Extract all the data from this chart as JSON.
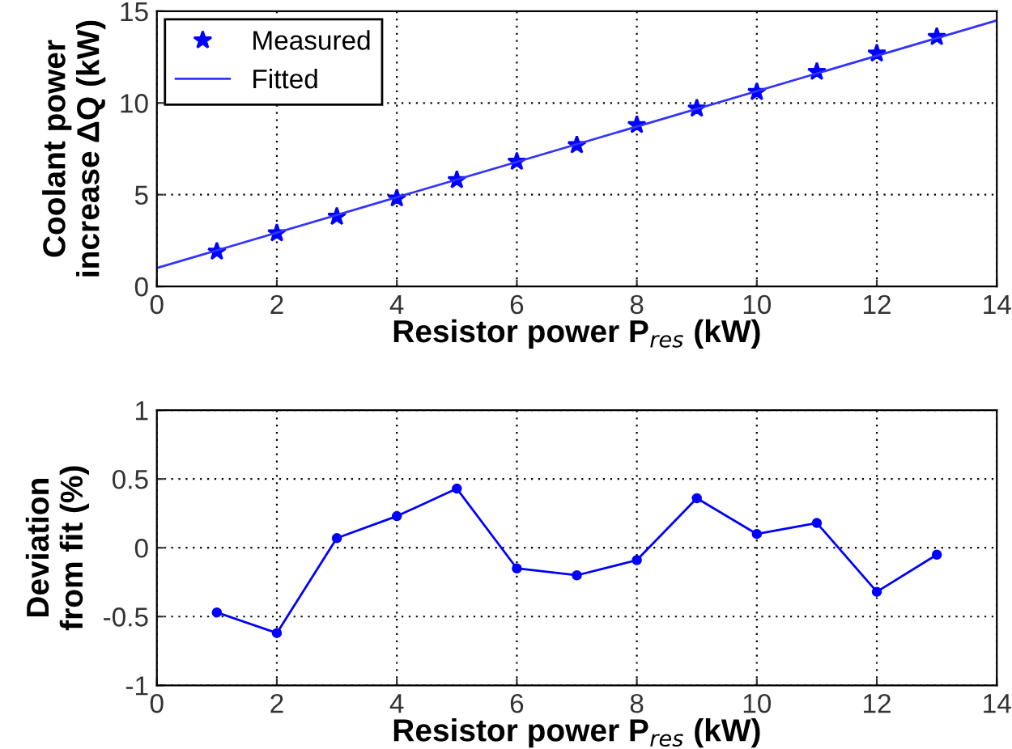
{
  "chart_data": [
    {
      "type": "line",
      "xlabel": "Resistor power P$_{res}$ (kW)",
      "ylabel": "Coolant power\nincrease ΔQ (kW)",
      "xlim": [
        0,
        14
      ],
      "ylim": [
        0,
        15
      ],
      "xticks": [
        0,
        2,
        4,
        6,
        8,
        10,
        12,
        14
      ],
      "yticks": [
        0,
        5,
        10,
        15
      ],
      "grid": true,
      "legend": "top left",
      "series": [
        {
          "name": "Measured",
          "type": "scatter",
          "marker": "star",
          "color": "#0000ff",
          "x": [
            1,
            2,
            3,
            4,
            5,
            6,
            7,
            8,
            9,
            10,
            11,
            12,
            13
          ],
          "values": [
            1.9,
            2.9,
            3.8,
            4.8,
            5.8,
            6.8,
            7.7,
            8.8,
            9.7,
            10.6,
            11.7,
            12.7,
            13.6
          ]
        },
        {
          "name": "Fitted",
          "type": "line",
          "marker": "none",
          "line_style": "solid",
          "color": "#3333ff",
          "x": [
            0,
            14
          ],
          "values": [
            1.0,
            14.5
          ]
        }
      ]
    },
    {
      "type": "line",
      "xlabel": "Resistor power P$_{res}$ (kW)",
      "ylabel": "Deviation\nfrom fit (%)",
      "xlim": [
        0,
        14
      ],
      "ylim": [
        -1,
        1
      ],
      "xticks": [
        0,
        2,
        4,
        6,
        8,
        10,
        12,
        14
      ],
      "yticks": [
        -1,
        -0.5,
        0,
        0.5,
        1
      ],
      "grid": true,
      "marker": "circle",
      "line_style": "solid",
      "series": [
        {
          "color": "#0000ff",
          "x": [
            1,
            2,
            3,
            4,
            5,
            6,
            7,
            8,
            9,
            10,
            11,
            12,
            13
          ],
          "values": [
            -0.47,
            -0.62,
            0.07,
            0.23,
            0.43,
            -0.15,
            -0.2,
            -0.09,
            0.36,
            0.1,
            0.18,
            -0.32,
            -0.05
          ]
        }
      ]
    }
  ]
}
